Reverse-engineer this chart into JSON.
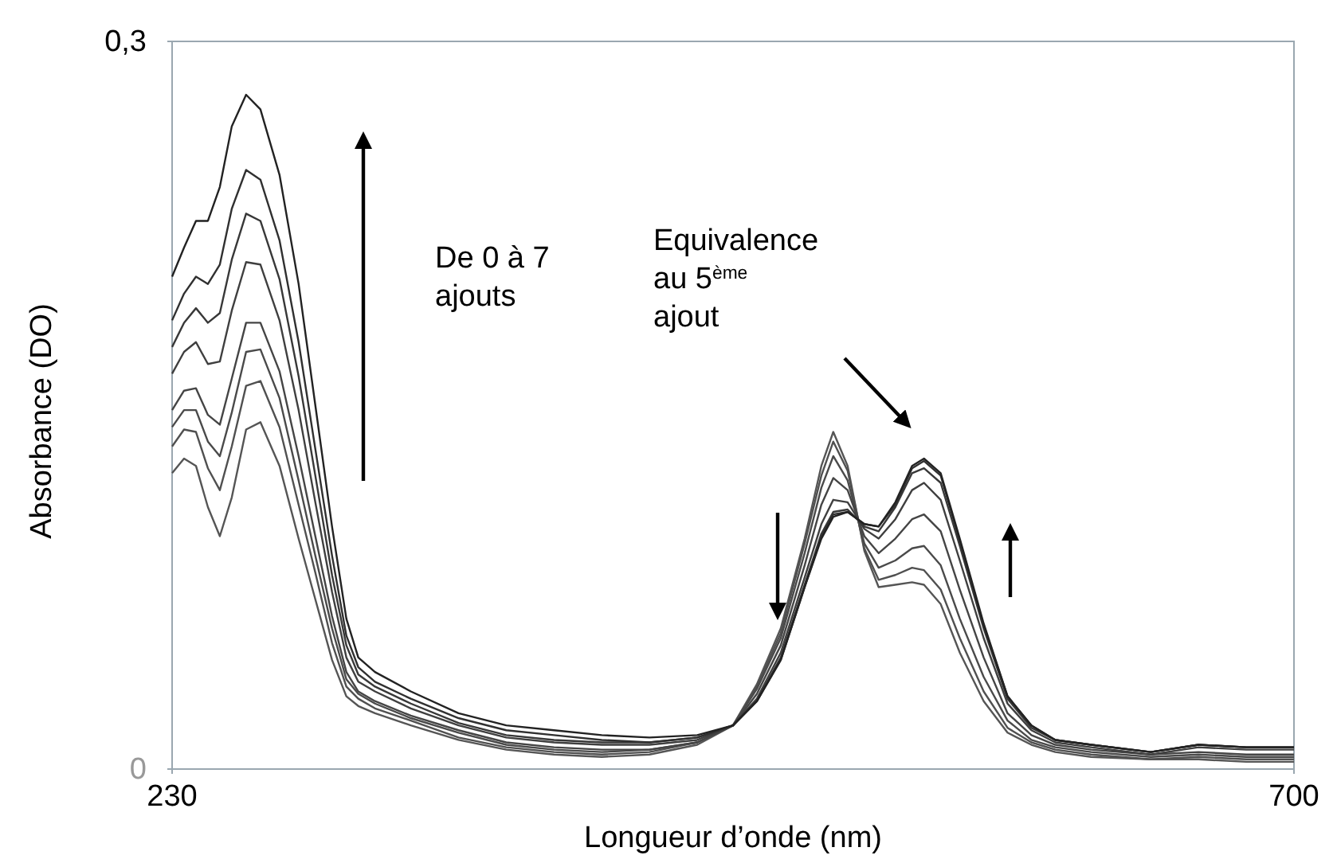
{
  "chart_data": {
    "type": "line",
    "xlabel": "Longueur d’onde (nm)",
    "ylabel": "Absorbance (DO)",
    "x": [
      230,
      235,
      240,
      245,
      250,
      255,
      261,
      267,
      275,
      283,
      290,
      297,
      303,
      308,
      315,
      330,
      350,
      370,
      390,
      410,
      430,
      450,
      465,
      475,
      485,
      495,
      502,
      507,
      513,
      520,
      526,
      533,
      540,
      545,
      552,
      560,
      570,
      580,
      590,
      600,
      615,
      640,
      660,
      680,
      700
    ],
    "xlim": [
      230,
      700
    ],
    "xticks": [
      230,
      700
    ],
    "ylim": [
      0,
      0.3
    ],
    "yticks": [
      0,
      {
        "value": 0.3,
        "label": "0,3"
      }
    ],
    "grid": false,
    "marker": "none",
    "line_style": "solid",
    "annotations": [
      "De 0 à 7 ajouts",
      "Equivalence au 5$^{ème}$ ajout"
    ],
    "series": [
      {
        "color": "#555555",
        "values": [
          0.122,
          0.128,
          0.125,
          0.108,
          0.096,
          0.112,
          0.14,
          0.143,
          0.125,
          0.095,
          0.07,
          0.045,
          0.03,
          0.026,
          0.023,
          0.018,
          0.012,
          0.008,
          0.006,
          0.005,
          0.006,
          0.01,
          0.018,
          0.035,
          0.058,
          0.095,
          0.125,
          0.139,
          0.125,
          0.09,
          0.075,
          0.076,
          0.077,
          0.076,
          0.068,
          0.048,
          0.028,
          0.015,
          0.01,
          0.007,
          0.005,
          0.004,
          0.004,
          0.003,
          0.003
        ]
      },
      {
        "color": "#505050",
        "values": [
          0.133,
          0.14,
          0.139,
          0.124,
          0.115,
          0.133,
          0.158,
          0.16,
          0.141,
          0.109,
          0.081,
          0.052,
          0.034,
          0.029,
          0.025,
          0.02,
          0.013,
          0.009,
          0.007,
          0.006,
          0.007,
          0.011,
          0.018,
          0.034,
          0.056,
          0.093,
          0.121,
          0.135,
          0.123,
          0.091,
          0.078,
          0.08,
          0.083,
          0.082,
          0.074,
          0.054,
          0.032,
          0.017,
          0.011,
          0.008,
          0.006,
          0.004,
          0.005,
          0.004,
          0.004
        ]
      },
      {
        "color": "#4a4a4a",
        "values": [
          0.141,
          0.148,
          0.148,
          0.135,
          0.129,
          0.147,
          0.172,
          0.173,
          0.153,
          0.119,
          0.088,
          0.058,
          0.037,
          0.031,
          0.027,
          0.021,
          0.015,
          0.01,
          0.008,
          0.007,
          0.008,
          0.011,
          0.018,
          0.033,
          0.054,
          0.089,
          0.116,
          0.129,
          0.119,
          0.093,
          0.083,
          0.086,
          0.091,
          0.092,
          0.084,
          0.062,
          0.038,
          0.02,
          0.012,
          0.009,
          0.007,
          0.005,
          0.006,
          0.005,
          0.005
        ]
      },
      {
        "color": "#454545",
        "values": [
          0.148,
          0.156,
          0.157,
          0.146,
          0.142,
          0.161,
          0.184,
          0.184,
          0.164,
          0.129,
          0.096,
          0.063,
          0.04,
          0.032,
          0.028,
          0.022,
          0.016,
          0.011,
          0.009,
          0.008,
          0.008,
          0.011,
          0.018,
          0.031,
          0.051,
          0.084,
          0.109,
          0.12,
          0.115,
          0.096,
          0.089,
          0.095,
          0.103,
          0.105,
          0.098,
          0.074,
          0.046,
          0.023,
          0.014,
          0.01,
          0.008,
          0.006,
          0.007,
          0.006,
          0.006
        ]
      },
      {
        "color": "#3f3f3f",
        "values": [
          0.163,
          0.172,
          0.176,
          0.167,
          0.168,
          0.189,
          0.209,
          0.208,
          0.185,
          0.148,
          0.11,
          0.073,
          0.046,
          0.036,
          0.032,
          0.025,
          0.018,
          0.013,
          0.011,
          0.01,
          0.01,
          0.012,
          0.018,
          0.029,
          0.048,
          0.079,
          0.101,
          0.111,
          0.11,
          0.099,
          0.095,
          0.103,
          0.115,
          0.118,
          0.111,
          0.086,
          0.054,
          0.027,
          0.016,
          0.011,
          0.009,
          0.006,
          0.009,
          0.008,
          0.008
        ]
      },
      {
        "color": "#383838",
        "values": [
          0.174,
          0.184,
          0.19,
          0.184,
          0.188,
          0.21,
          0.229,
          0.226,
          0.202,
          0.162,
          0.121,
          0.08,
          0.051,
          0.039,
          0.034,
          0.027,
          0.019,
          0.014,
          0.012,
          0.011,
          0.011,
          0.013,
          0.018,
          0.028,
          0.046,
          0.076,
          0.097,
          0.106,
          0.107,
          0.1,
          0.098,
          0.108,
          0.122,
          0.124,
          0.118,
          0.092,
          0.058,
          0.029,
          0.017,
          0.012,
          0.01,
          0.007,
          0.01,
          0.009,
          0.009
        ]
      },
      {
        "color": "#303030",
        "values": [
          0.185,
          0.196,
          0.203,
          0.2,
          0.208,
          0.231,
          0.247,
          0.243,
          0.218,
          0.176,
          0.132,
          0.088,
          0.055,
          0.042,
          0.036,
          0.029,
          0.021,
          0.016,
          0.014,
          0.012,
          0.011,
          0.013,
          0.018,
          0.028,
          0.045,
          0.075,
          0.096,
          0.105,
          0.106,
          0.101,
          0.1,
          0.109,
          0.124,
          0.127,
          0.121,
          0.094,
          0.059,
          0.03,
          0.018,
          0.012,
          0.01,
          0.007,
          0.01,
          0.009,
          0.009
        ]
      },
      {
        "color": "#222222",
        "values": [
          0.203,
          0.215,
          0.226,
          0.226,
          0.24,
          0.265,
          0.278,
          0.272,
          0.245,
          0.2,
          0.15,
          0.1,
          0.062,
          0.046,
          0.04,
          0.032,
          0.023,
          0.018,
          0.016,
          0.014,
          0.013,
          0.014,
          0.018,
          0.028,
          0.045,
          0.075,
          0.095,
          0.104,
          0.106,
          0.101,
          0.1,
          0.11,
          0.125,
          0.128,
          0.122,
          0.095,
          0.06,
          0.03,
          0.018,
          0.012,
          0.01,
          0.007,
          0.01,
          0.009,
          0.009
        ]
      }
    ]
  }
}
